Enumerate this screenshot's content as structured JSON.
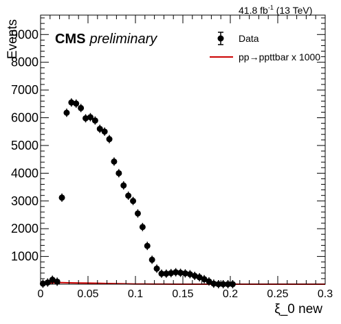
{
  "header": {
    "lumi_value": "41.8 fb",
    "lumi_exp": "-1",
    "lumi_energy": " (13 TeV)"
  },
  "labels": {
    "experiment": "CMS",
    "status": "preliminary"
  },
  "colors": {
    "data": "#000000",
    "signal": "#cc0000",
    "axis": "#000000"
  },
  "chart_data": {
    "type": "scatter",
    "xlabel": "ξ_0 new",
    "ylabel": "Events",
    "xlim": [
      0,
      0.3
    ],
    "ylim": [
      0,
      9700
    ],
    "xticks": [
      0,
      0.05,
      0.1,
      0.15,
      0.2,
      0.25,
      0.3
    ],
    "xtick_labels": [
      "0",
      "0.05",
      "0.1",
      "0.15",
      "0.2",
      "0.25",
      "0.3"
    ],
    "yticks": [
      1000,
      2000,
      3000,
      4000,
      5000,
      6000,
      7000,
      8000,
      9000
    ],
    "ytick_labels": [
      "1000",
      "2000",
      "3000",
      "4000",
      "5000",
      "6000",
      "7000",
      "8000",
      "9000"
    ],
    "grid": false,
    "legend_position": "top-right",
    "legend": [
      {
        "label": "Data",
        "marker": "point-errorbar"
      },
      {
        "label": "pp→ppttbar x 1000",
        "marker": "line"
      }
    ],
    "series": [
      {
        "name": "Data",
        "style": "points",
        "x": [
          0.0025,
          0.0075,
          0.0125,
          0.0175,
          0.0225,
          0.0275,
          0.0325,
          0.0375,
          0.0425,
          0.0475,
          0.0525,
          0.0575,
          0.0625,
          0.0675,
          0.0725,
          0.0775,
          0.0825,
          0.0875,
          0.0925,
          0.0975,
          0.1025,
          0.1075,
          0.1125,
          0.1175,
          0.1225,
          0.1275,
          0.1325,
          0.1375,
          0.1425,
          0.1475,
          0.1525,
          0.1575,
          0.1625,
          0.1675,
          0.1725,
          0.1775,
          0.1825,
          0.1875,
          0.1925,
          0.1975,
          0.2025
        ],
        "y": [
          20,
          60,
          160,
          90,
          3120,
          6180,
          6550,
          6510,
          6350,
          5980,
          6020,
          5900,
          5600,
          5500,
          5230,
          4420,
          4000,
          3560,
          3190,
          3000,
          2550,
          2060,
          1380,
          880,
          560,
          380,
          380,
          400,
          430,
          410,
          390,
          360,
          300,
          250,
          180,
          100,
          20,
          0,
          0,
          0,
          0
        ]
      },
      {
        "name": "pp→ppttbar x 1000",
        "style": "line",
        "x": [
          0,
          0.01,
          0.02,
          0.03,
          0.04,
          0.05,
          0.06,
          0.07,
          0.08,
          0.09,
          0.1,
          0.11,
          0.12,
          0.13,
          0.15,
          0.2,
          0.3
        ],
        "y": [
          0,
          40,
          60,
          50,
          45,
          40,
          35,
          25,
          18,
          12,
          8,
          5,
          3,
          2,
          1,
          0,
          0
        ]
      }
    ]
  }
}
